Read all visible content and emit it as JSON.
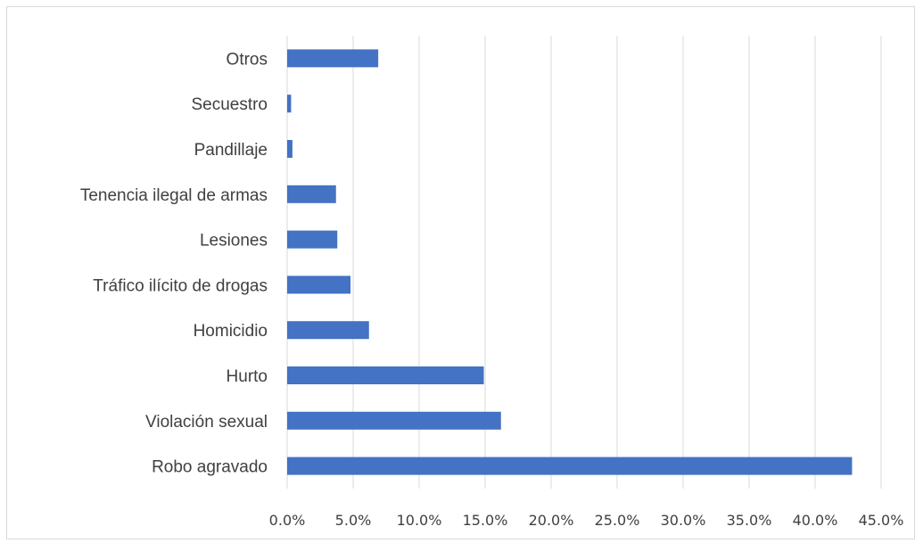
{
  "chart_data": {
    "type": "bar",
    "orientation": "horizontal",
    "categories": [
      "Robo agravado",
      "Violación sexual",
      "Hurto",
      "Homicidio",
      "Tráfico ilícito de drogas",
      "Lesiones",
      "Tenencia ilegal de armas",
      "Pandillaje",
      "Secuestro",
      "Otros"
    ],
    "values": [
      42.8,
      16.2,
      14.9,
      6.2,
      4.8,
      3.8,
      3.7,
      0.4,
      0.3,
      6.9
    ],
    "x_ticks": [
      "0.0%",
      "5.0%",
      "10.0%",
      "15.0%",
      "20.0%",
      "25.0%",
      "30.0%",
      "35.0%",
      "40.0%",
      "45.0%"
    ],
    "xlim": [
      0,
      45
    ],
    "grid": true,
    "legend": "none",
    "bar_color": "#4472c4",
    "grid_color": "#d9d9d9"
  }
}
